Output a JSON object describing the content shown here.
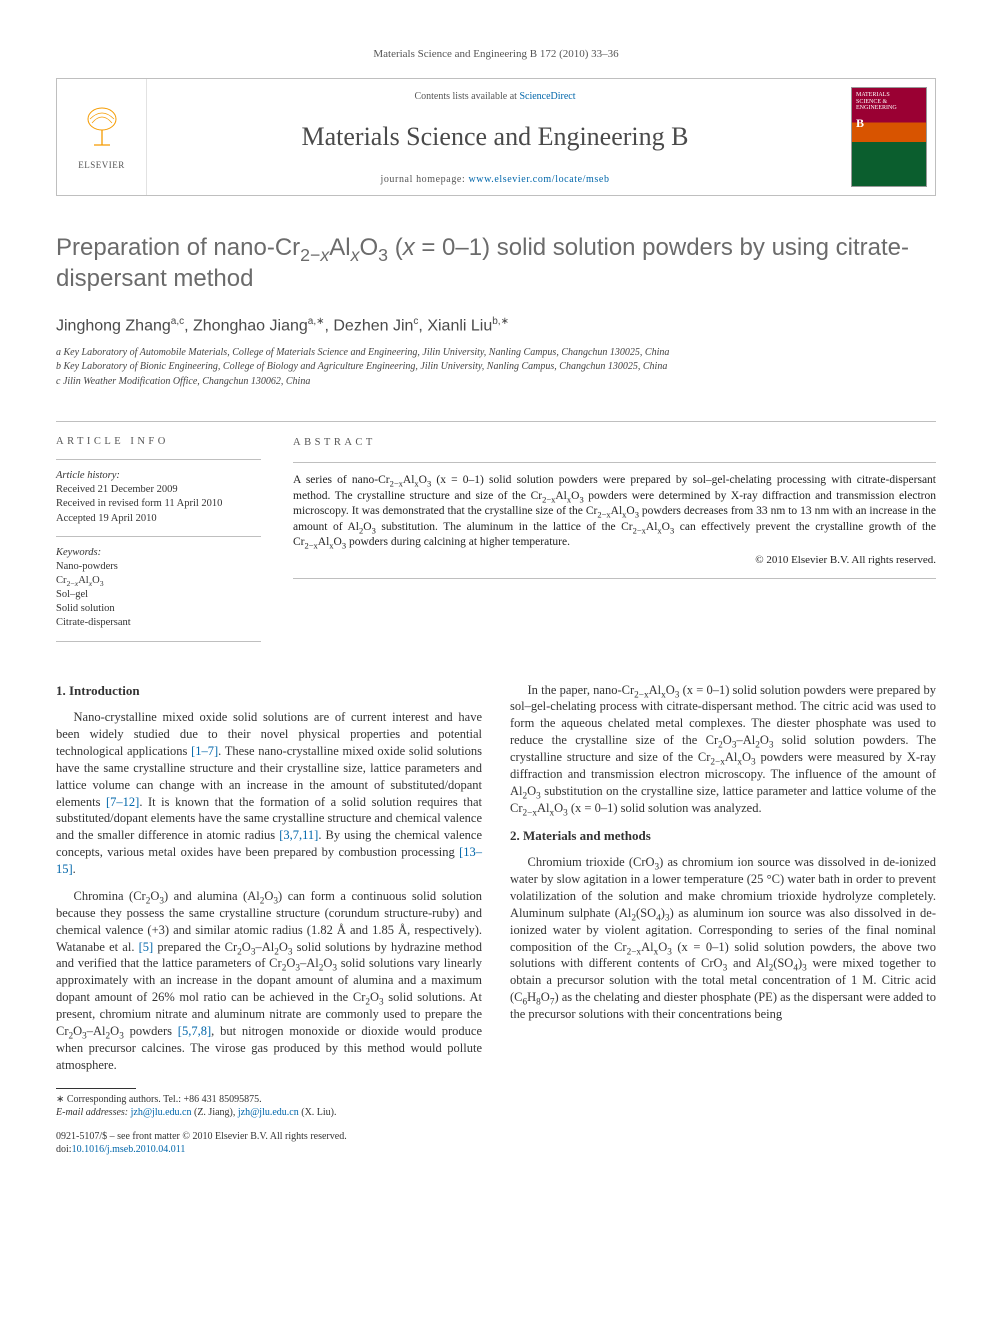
{
  "running_head": "Materials Science and Engineering B 172 (2010) 33–36",
  "masthead": {
    "publisher_label": "ELSEVIER",
    "contents_prefix": "Contents lists available at ",
    "contents_link": "ScienceDirect",
    "journal_name": "Materials Science and Engineering B",
    "homepage_prefix": "journal homepage: ",
    "homepage_link": "www.elsevier.com/locate/mseb",
    "cover_text": "MATERIALS SCIENCE & ENGINEERING B"
  },
  "title_html": "Preparation of nano-Cr<sub>2−<i>x</i></sub>Al<sub><i>x</i></sub>O<sub>3</sub> (<i>x</i> = 0–1) solid solution powders by using citrate-dispersant method",
  "authors_html": "Jinghong Zhang<sup>a,c</sup>, Zhonghao Jiang<sup>a,∗</sup>, Dezhen Jin<sup>c</sup>, Xianli Liu<sup>b,∗</sup>",
  "affiliations": [
    "a Key Laboratory of Automobile Materials, College of Materials Science and Engineering, Jilin University, Nanling Campus, Changchun 130025, China",
    "b Key Laboratory of Bionic Engineering, College of Biology and Agriculture Engineering, Jilin University, Nanling Campus, Changchun 130025, China",
    "c Jilin Weather Modification Office, Changchun 130062, China"
  ],
  "info": {
    "head": "ARTICLE INFO",
    "history_label": "Article history:",
    "history_lines": [
      "Received 21 December 2009",
      "Received in revised form 11 April 2010",
      "Accepted 19 April 2010"
    ],
    "keywords_label": "Keywords:",
    "keywords": [
      "Nano-powders",
      "Cr2−xAlxO3",
      "Sol–gel",
      "Solid solution",
      "Citrate-dispersant"
    ]
  },
  "abstract": {
    "head": "ABSTRACT",
    "text_html": "A series of nano-Cr<sub>2−x</sub>Al<sub>x</sub>O<sub>3</sub> (x = 0–1) solid solution powders were prepared by sol–gel-chelating processing with citrate-dispersant method. The crystalline structure and size of the Cr<sub>2−x</sub>Al<sub>x</sub>O<sub>3</sub> powders were determined by X-ray diffraction and transmission electron microscopy. It was demonstrated that the crystalline size of the Cr<sub>2−x</sub>Al<sub>x</sub>O<sub>3</sub> powders decreases from 33 nm to 13 nm with an increase in the amount of Al<sub>2</sub>O<sub>3</sub> substitution. The aluminum in the lattice of the Cr<sub>2−x</sub>Al<sub>x</sub>O<sub>3</sub> can effectively prevent the crystalline growth of the Cr<sub>2−x</sub>Al<sub>x</sub>O<sub>3</sub> powders during calcining at higher temperature.",
    "copyright": "© 2010 Elsevier B.V. All rights reserved."
  },
  "body": {
    "sec1_head": "1. Introduction",
    "sec1_p1_html": "Nano-crystalline mixed oxide solid solutions are of current interest and have been widely studied due to their novel physical properties and potential technological applications <span class=\"ref\">[1–7]</span>. These nano-crystalline mixed oxide solid solutions have the same crystalline structure and their crystalline size, lattice parameters and lattice volume can change with an increase in the amount of substituted/dopant elements <span class=\"ref\">[7–12]</span>. It is known that the formation of a solid solution requires that substituted/dopant elements have the same crystalline structure and chemical valence and the smaller difference in atomic radius <span class=\"ref\">[3,7,11]</span>. By using the chemical valence concepts, various metal oxides have been prepared by combustion processing <span class=\"ref\">[13–15]</span>.",
    "sec1_p2_html": "Chromina (Cr<sub>2</sub>O<sub>3</sub>) and alumina (Al<sub>2</sub>O<sub>3</sub>) can form a continuous solid solution because they possess the same crystalline structure (corundum structure-ruby) and chemical valence (+3) and similar atomic radius (1.82 Å and 1.85 Å, respectively). Watanabe et al. <span class=\"ref\">[5]</span> prepared the Cr<sub>2</sub>O<sub>3</sub>–Al<sub>2</sub>O<sub>3</sub> solid solutions by hydrazine method and verified that the lattice parameters of Cr<sub>2</sub>O<sub>3</sub>–Al<sub>2</sub>O<sub>3</sub> solid solutions vary linearly approximately with an increase in the dopant amount of alumina and a maximum dopant amount of 26% mol ratio can be achieved in the Cr<sub>2</sub>O<sub>3</sub> solid solutions. At present, chromium nitrate and aluminum nitrate are commonly used to prepare the Cr<sub>2</sub>O<sub>3</sub>–Al<sub>2</sub>O<sub>3</sub> powders <span class=\"ref\">[5,7,8]</span>, but nitrogen monoxide or dioxide would produce when precursor calcines. The virose gas produced by this method would pollute atmosphere.",
    "sec1_p3_html": "In the paper, nano-Cr<sub>2−x</sub>Al<sub>x</sub>O<sub>3</sub> (x = 0–1) solid solution powders were prepared by sol–gel-chelating process with citrate-dispersant method. The citric acid was used to form the aqueous chelated metal complexes. The diester phosphate was used to reduce the crystalline size of the Cr<sub>2</sub>O<sub>3</sub>–Al<sub>2</sub>O<sub>3</sub> solid solution powders. The crystalline structure and size of the Cr<sub>2−x</sub>Al<sub>x</sub>O<sub>3</sub> powders were measured by X-ray diffraction and transmission electron microscopy. The influence of the amount of Al<sub>2</sub>O<sub>3</sub> substitution on the crystalline size, lattice parameter and lattice volume of the Cr<sub>2−x</sub>Al<sub>x</sub>O<sub>3</sub> (x = 0–1) solid solution was analyzed.",
    "sec2_head": "2. Materials and methods",
    "sec2_p1_html": "Chromium trioxide (CrO<sub>3</sub>) as chromium ion source was dissolved in de-ionized water by slow agitation in a lower temperature (25 °C) water bath in order to prevent volatilization of the solution and make chromium trioxide hydrolyze completely. Aluminum sulphate (Al<sub>2</sub>(SO<sub>4</sub>)<sub>3</sub>) as aluminum ion source was also dissolved in de-ionized water by violent agitation. Corresponding to series of the final nominal composition of the Cr<sub>2−x</sub>Al<sub>x</sub>O<sub>3</sub> (x = 0–1) solid solution powders, the above two solutions with different contents of CrO<sub>3</sub> and Al<sub>2</sub>(SO<sub>4</sub>)<sub>3</sub> were mixed together to obtain a precursor solution with the total metal concentration of 1 M. Citric acid (C<sub>6</sub>H<sub>8</sub>O<sub>7</sub>) as the chelating and diester phosphate (PE) as the dispersant were added to the precursor solutions with their concentrations being"
  },
  "footnotes": {
    "corr_label": "∗ Corresponding authors. Tel.: +86 431 85095875.",
    "email_label": "E-mail addresses:",
    "emails_html": "<a>jzh@jlu.edu.cn</a> (Z. Jiang), <a>jzh@jlu.edu.cn</a> (X. Liu)."
  },
  "bottom": {
    "issn_line": "0921-5107/$ – see front matter © 2010 Elsevier B.V. All rights reserved.",
    "doi_prefix": "doi:",
    "doi_link": "10.1016/j.mseb.2010.04.011"
  },
  "colors": {
    "link": "#0066aa",
    "heading_gray": "#6b6b6b",
    "border": "#bfbfbf",
    "elsevier_orange": "#f59b00"
  }
}
